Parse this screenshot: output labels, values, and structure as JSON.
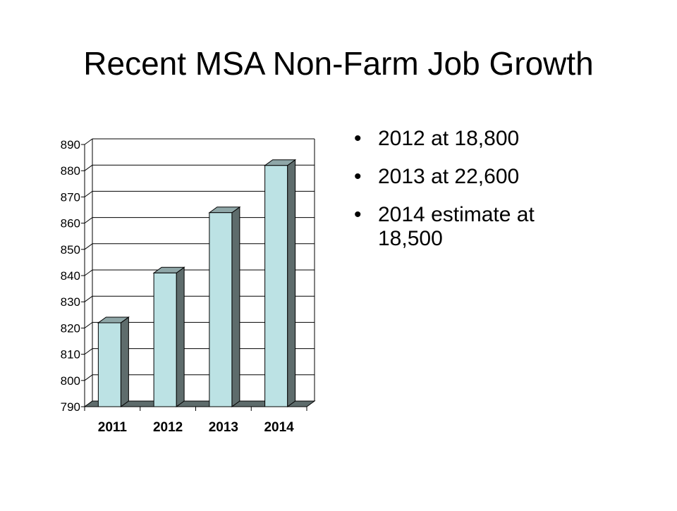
{
  "slide": {
    "title": "Recent MSA Non-Farm Job Growth"
  },
  "bullets": [
    "2012 at 18,800",
    "2013 at 22,600",
    "2014 estimate at 18,500"
  ],
  "colors": {
    "bar_front": "#bce2e4",
    "bar_side": "#5e6c6c",
    "bar_top": "#8fa7a8",
    "grid": "#000000"
  },
  "chart_data": {
    "type": "bar",
    "title": "",
    "xlabel": "",
    "ylabel": "",
    "categories": [
      "2011",
      "2012",
      "2013",
      "2014"
    ],
    "values": [
      822,
      841,
      864,
      882
    ],
    "ylim": [
      790,
      890
    ],
    "yticks": [
      790,
      800,
      810,
      820,
      830,
      840,
      850,
      860,
      870,
      880,
      890
    ],
    "grid": true,
    "legend": "none",
    "style": "3d-columns"
  }
}
